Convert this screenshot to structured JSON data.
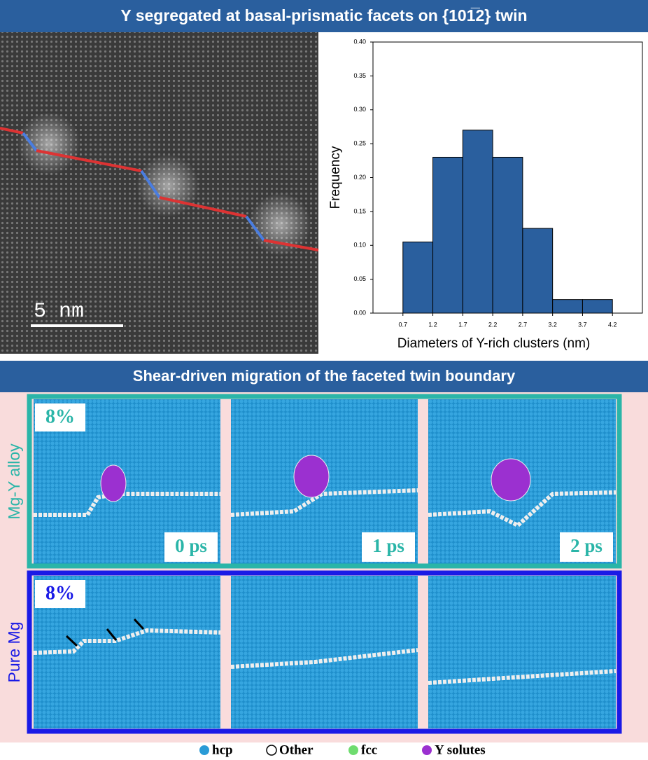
{
  "header": {
    "title": "Y segregated at basal-prismatic facets on {101̅2} twin"
  },
  "image": {
    "scale_bar": "5 nm"
  },
  "chart_data": {
    "type": "histogram",
    "xlabel": "Diameters of Y-rich clusters (nm)",
    "ylabel": "Frequency",
    "bins": [
      0.7,
      1.2,
      1.7,
      2.2,
      2.7,
      3.2,
      3.7,
      4.2
    ],
    "values": [
      0.105,
      0.23,
      0.27,
      0.23,
      0.125,
      0.02,
      0.02
    ],
    "color": "#2a5f9e",
    "xlim": [
      0.2,
      4.7
    ],
    "xticks": [
      0.7,
      1.2,
      1.7,
      2.2,
      2.7,
      3.2,
      3.7,
      4.2
    ],
    "ylim": [
      0,
      0.4
    ],
    "yticks": [
      {
        "value": 0,
        "label": "0.00"
      },
      {
        "value": 0.05,
        "label": "0.05"
      },
      {
        "value": 0.1,
        "label": "0.10"
      },
      {
        "value": 0.15,
        "label": "0.15"
      },
      {
        "value": 0.2,
        "label": "0.20"
      },
      {
        "value": 0.25,
        "label": "0.25"
      },
      {
        "value": 0.3,
        "label": "0.30"
      },
      {
        "value": 0.35,
        "label": "0.35"
      },
      {
        "value": 0.4,
        "label": "0.40"
      }
    ]
  },
  "section": {
    "title": "Shear-driven migration of the faceted twin boundary",
    "rows": [
      {
        "label": "Mg-Y alloy",
        "strain": "8%",
        "times": [
          "0 ps",
          "1 ps",
          "2 ps"
        ]
      },
      {
        "label": "Pure Mg",
        "strain": "8%"
      }
    ]
  },
  "legend": [
    {
      "label": "hcp",
      "color": "#2a9bd6"
    },
    {
      "label": "Other",
      "color": "#ffffff"
    },
    {
      "label": "fcc",
      "color": "#6fdc6f"
    },
    {
      "label": "Y solutes",
      "color": "#9b30d0"
    }
  ]
}
